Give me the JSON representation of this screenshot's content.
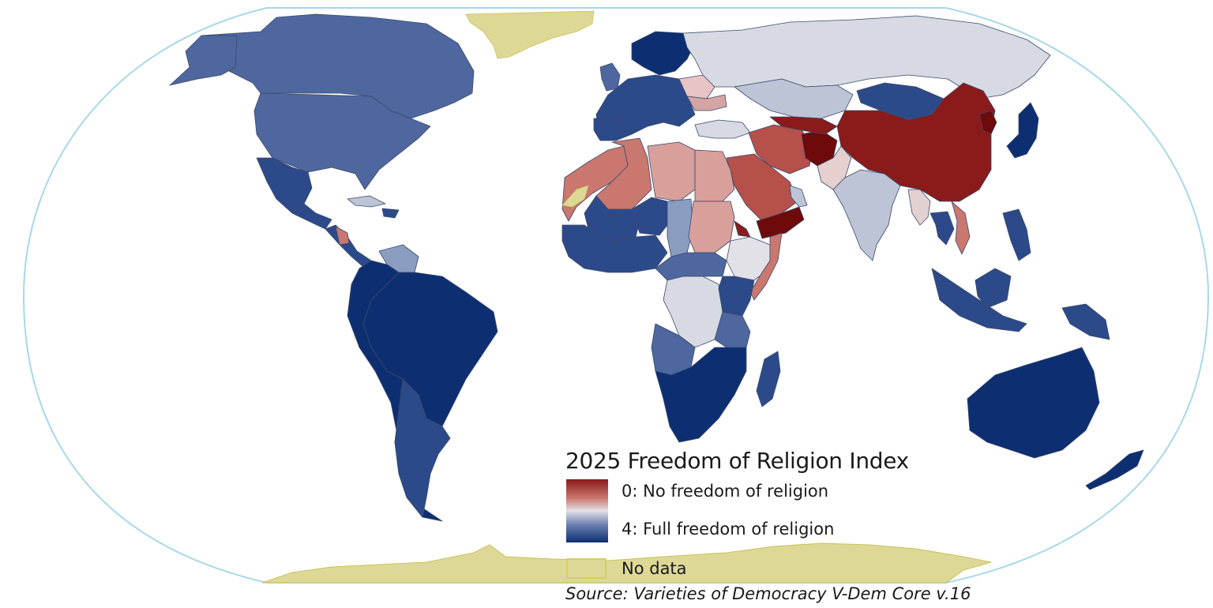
{
  "legend": {
    "title": "2025 Freedom of Religion Index",
    "low_label": "0: No freedom of religion",
    "high_label": "4: Full freedom of religion",
    "no_data_label": "No data",
    "scale_colors": [
      "#8b1a1a",
      "#c9776f",
      "#e3e1e8",
      "#6b7fb0",
      "#0d2f72"
    ],
    "no_data_color": "#ddd896"
  },
  "source": "Source: Varieties of Democracy V-Dem Core v.16",
  "colors": {
    "full": "#0d2f72",
    "high": "#2c4a8a",
    "mid_high": "#4f679f",
    "mid": "#8a9cc0",
    "light": "#bcc4d6",
    "neutral": "#d7dae3",
    "pale_red": "#d99f9b",
    "mid_red": "#c9776f",
    "red": "#b5504a",
    "dark_red": "#8b1a1a",
    "darkest_red": "#6e0a0a",
    "no_data": "#ddd896"
  }
}
